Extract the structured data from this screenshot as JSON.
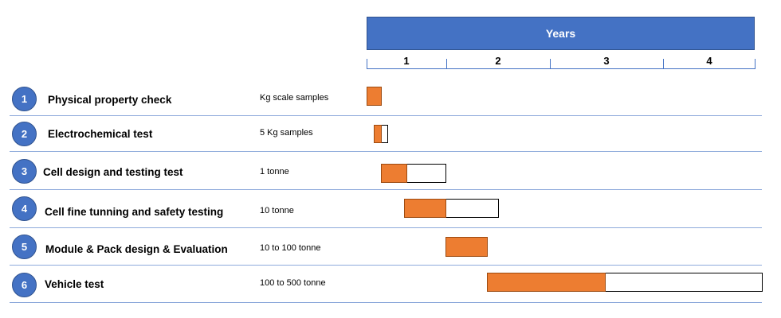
{
  "header": {
    "title": "Years"
  },
  "years": [
    "1",
    "2",
    "3",
    "4"
  ],
  "colors": {
    "header": "#4472c4",
    "bar_fill": "#ed7d31",
    "circle": "#4472c4",
    "divider": "#8eaadb"
  },
  "tasks": [
    {
      "num": "1",
      "name": "Physical property check",
      "scale": "Kg scale samples"
    },
    {
      "num": "2",
      "name": "Electrochemical test",
      "scale": "5 Kg samples"
    },
    {
      "num": "3",
      "name": "Cell design and testing test",
      "scale": "1 tonne"
    },
    {
      "num": "4",
      "name": "Cell fine tunning and safety testing",
      "scale": "10 tonne"
    },
    {
      "num": "5",
      "name": "Module & Pack design & Evaluation",
      "scale": "10 to 100 tonne"
    },
    {
      "num": "6",
      "name": "Vehicle test",
      "scale": "100 to 500 tonne"
    }
  ]
}
